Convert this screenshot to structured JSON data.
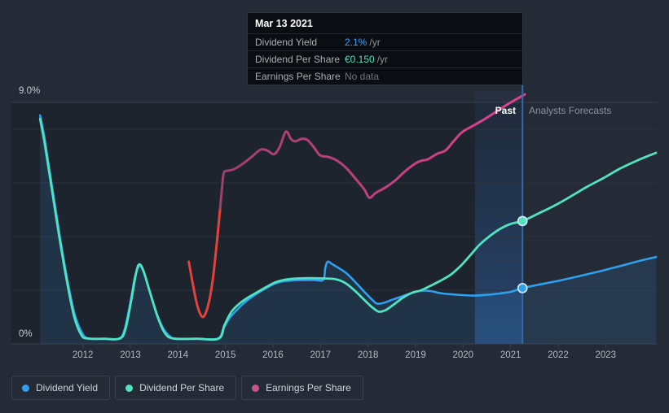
{
  "tooltip": {
    "title": "Mar 13 2021",
    "rows": [
      {
        "label": "Dividend Yield",
        "value": "2.1%",
        "suffix": "/yr",
        "value_color": "#36a2f5"
      },
      {
        "label": "Dividend Per Share",
        "value": "€0.150",
        "suffix": "/yr",
        "value_color": "#45e3c4"
      },
      {
        "label": "Earnings Per Share",
        "value": "No data",
        "suffix": "",
        "value_color": "#70767e"
      }
    ]
  },
  "axis": {
    "y_top_label": "9.0%",
    "y_bottom_label": "0%"
  },
  "annotations": {
    "past": "Past",
    "forecast": "Analysts Forecasts"
  },
  "legend": {
    "items": [
      {
        "label": "Dividend Yield",
        "color": "#2da0f0"
      },
      {
        "label": "Dividend Per Share",
        "color": "#4fe3c1"
      },
      {
        "label": "Earnings Per Share",
        "color": "#c9548e"
      }
    ]
  },
  "colors": {
    "page_bg": "#252b36",
    "past_plot_bg": "#1e242e",
    "gridline": "#2a313c",
    "gridline_strong": "#394150",
    "dividend_yield": "#2da0f0",
    "dividend_per_share": "#4fe3c1",
    "eps_pink_start": "#9d4070",
    "eps_pink_end": "#e2418f",
    "eps_red": "#e5423b",
    "area_fill": "rgba(47,128,208,0.16)",
    "now_line": "#2e6aae",
    "highlight_top": "rgba(44,100,170,0.08)",
    "highlight_bottom": "rgba(52,118,200,0.42)",
    "marker_ring": "#cfe3f2"
  },
  "chart_data": {
    "type": "line",
    "ylim": [
      0,
      9
    ],
    "y_gridlines_pct": [
      2,
      4,
      6,
      8
    ],
    "y_top_line_pct": 9,
    "x_tick_labels": [
      "2012",
      "2013",
      "2014",
      "2015",
      "2016",
      "2017",
      "2018",
      "2019",
      "2020",
      "2021",
      "2022",
      "2023"
    ],
    "x_tick_years": [
      2012,
      2013,
      2014,
      2015,
      2016,
      2017,
      2018,
      2019,
      2020,
      2021,
      2022,
      2023
    ],
    "past_forecast_divider_x": 2021.25,
    "highlight_x_range": [
      2020.25,
      2021.25
    ],
    "series": [
      {
        "name": "Dividend Yield",
        "past": [
          [
            2011.1,
            8.52
          ],
          [
            2011.2,
            7.61
          ],
          [
            2011.34,
            6.0
          ],
          [
            2011.49,
            4.3
          ],
          [
            2011.66,
            2.52
          ],
          [
            2011.83,
            1.09
          ],
          [
            2011.99,
            0.39
          ],
          [
            2012.13,
            0.2
          ],
          [
            2012.45,
            0.19
          ],
          [
            2012.76,
            0.2
          ],
          [
            2012.88,
            0.55
          ],
          [
            2013.0,
            1.55
          ],
          [
            2013.1,
            2.52
          ],
          [
            2013.19,
            2.91
          ],
          [
            2013.27,
            2.73
          ],
          [
            2013.39,
            2.06
          ],
          [
            2013.55,
            1.15
          ],
          [
            2013.7,
            0.55
          ],
          [
            2013.84,
            0.27
          ],
          [
            2013.95,
            0.2
          ],
          [
            2014.4,
            0.19
          ],
          [
            2014.84,
            0.2
          ],
          [
            2014.96,
            0.58
          ],
          [
            2015.09,
            0.97
          ],
          [
            2015.26,
            1.3
          ],
          [
            2015.43,
            1.58
          ],
          [
            2015.64,
            1.85
          ],
          [
            2015.84,
            2.06
          ],
          [
            2016.03,
            2.24
          ],
          [
            2016.21,
            2.33
          ],
          [
            2016.39,
            2.36
          ],
          [
            2016.63,
            2.38
          ],
          [
            2016.87,
            2.38
          ],
          [
            2017.06,
            2.39
          ],
          [
            2017.1,
            2.82
          ],
          [
            2017.15,
            3.06
          ],
          [
            2017.25,
            2.97
          ],
          [
            2017.39,
            2.82
          ],
          [
            2017.56,
            2.61
          ],
          [
            2017.75,
            2.27
          ],
          [
            2017.94,
            1.91
          ],
          [
            2018.09,
            1.64
          ],
          [
            2018.19,
            1.5
          ],
          [
            2018.33,
            1.53
          ],
          [
            2018.5,
            1.64
          ],
          [
            2018.71,
            1.77
          ],
          [
            2018.91,
            1.89
          ],
          [
            2019.1,
            1.98
          ],
          [
            2019.31,
            1.97
          ],
          [
            2019.53,
            1.89
          ],
          [
            2019.75,
            1.85
          ],
          [
            2019.99,
            1.82
          ],
          [
            2020.25,
            1.8
          ],
          [
            2020.51,
            1.83
          ],
          [
            2020.77,
            1.88
          ],
          [
            2021.02,
            1.95
          ],
          [
            2021.25,
            2.08
          ]
        ],
        "forecast": [
          [
            2021.25,
            2.08
          ],
          [
            2021.57,
            2.2
          ],
          [
            2021.92,
            2.32
          ],
          [
            2022.26,
            2.45
          ],
          [
            2022.6,
            2.59
          ],
          [
            2022.95,
            2.74
          ],
          [
            2023.32,
            2.91
          ],
          [
            2023.68,
            3.08
          ],
          [
            2024.06,
            3.24
          ]
        ],
        "marker": [
          2021.25,
          2.08
        ]
      },
      {
        "name": "Dividend Per Share",
        "past": [
          [
            2011.1,
            8.39
          ],
          [
            2011.2,
            7.45
          ],
          [
            2011.34,
            5.85
          ],
          [
            2011.49,
            4.15
          ],
          [
            2011.66,
            2.39
          ],
          [
            2011.82,
            1.0
          ],
          [
            2011.97,
            0.33
          ],
          [
            2012.1,
            0.2
          ],
          [
            2012.45,
            0.19
          ],
          [
            2012.78,
            0.2
          ],
          [
            2012.9,
            0.58
          ],
          [
            2013.02,
            1.64
          ],
          [
            2013.12,
            2.64
          ],
          [
            2013.19,
            2.97
          ],
          [
            2013.28,
            2.7
          ],
          [
            2013.4,
            2.0
          ],
          [
            2013.57,
            1.03
          ],
          [
            2013.72,
            0.42
          ],
          [
            2013.9,
            0.2
          ],
          [
            2014.4,
            0.19
          ],
          [
            2014.86,
            0.2
          ],
          [
            2014.98,
            0.7
          ],
          [
            2015.12,
            1.18
          ],
          [
            2015.28,
            1.48
          ],
          [
            2015.45,
            1.7
          ],
          [
            2015.65,
            1.91
          ],
          [
            2015.86,
            2.12
          ],
          [
            2016.06,
            2.3
          ],
          [
            2016.28,
            2.4
          ],
          [
            2016.52,
            2.44
          ],
          [
            2016.8,
            2.45
          ],
          [
            2017.07,
            2.44
          ],
          [
            2017.32,
            2.41
          ],
          [
            2017.52,
            2.27
          ],
          [
            2017.73,
            1.97
          ],
          [
            2017.92,
            1.64
          ],
          [
            2018.09,
            1.36
          ],
          [
            2018.23,
            1.2
          ],
          [
            2018.38,
            1.27
          ],
          [
            2018.55,
            1.48
          ],
          [
            2018.74,
            1.73
          ],
          [
            2018.93,
            1.91
          ],
          [
            2019.12,
            2.0
          ],
          [
            2019.33,
            2.18
          ],
          [
            2019.53,
            2.36
          ],
          [
            2019.74,
            2.58
          ],
          [
            2019.95,
            2.91
          ],
          [
            2020.15,
            3.3
          ],
          [
            2020.35,
            3.7
          ],
          [
            2020.57,
            4.03
          ],
          [
            2020.79,
            4.3
          ],
          [
            2021.0,
            4.47
          ],
          [
            2021.25,
            4.58
          ]
        ],
        "forecast": [
          [
            2021.25,
            4.58
          ],
          [
            2021.57,
            4.85
          ],
          [
            2021.92,
            5.15
          ],
          [
            2022.26,
            5.49
          ],
          [
            2022.6,
            5.85
          ],
          [
            2022.95,
            6.18
          ],
          [
            2023.32,
            6.55
          ],
          [
            2023.68,
            6.85
          ],
          [
            2024.06,
            7.12
          ]
        ],
        "marker": [
          2021.25,
          4.58
        ]
      },
      {
        "name": "Earnings Per Share",
        "red_segment": [
          [
            2014.23,
            3.06
          ],
          [
            2014.32,
            2.18
          ],
          [
            2014.41,
            1.42
          ],
          [
            2014.5,
            1.03
          ],
          [
            2014.57,
            1.09
          ],
          [
            2014.66,
            1.61
          ],
          [
            2014.74,
            2.48
          ],
          [
            2014.82,
            3.79
          ],
          [
            2014.89,
            5.06
          ]
        ],
        "main": [
          [
            2014.89,
            5.06
          ],
          [
            2014.93,
            5.85
          ],
          [
            2014.97,
            6.39
          ],
          [
            2015.07,
            6.46
          ],
          [
            2015.19,
            6.52
          ],
          [
            2015.4,
            6.76
          ],
          [
            2015.57,
            7.0
          ],
          [
            2015.74,
            7.24
          ],
          [
            2015.88,
            7.21
          ],
          [
            2016.02,
            7.07
          ],
          [
            2016.14,
            7.33
          ],
          [
            2016.27,
            7.91
          ],
          [
            2016.38,
            7.64
          ],
          [
            2016.47,
            7.55
          ],
          [
            2016.6,
            7.64
          ],
          [
            2016.72,
            7.61
          ],
          [
            2016.86,
            7.33
          ],
          [
            2016.99,
            7.03
          ],
          [
            2017.16,
            6.97
          ],
          [
            2017.33,
            6.85
          ],
          [
            2017.53,
            6.58
          ],
          [
            2017.74,
            6.15
          ],
          [
            2017.92,
            5.76
          ],
          [
            2018.03,
            5.45
          ],
          [
            2018.17,
            5.64
          ],
          [
            2018.36,
            5.82
          ],
          [
            2018.57,
            6.09
          ],
          [
            2018.77,
            6.42
          ],
          [
            2019.0,
            6.73
          ],
          [
            2019.13,
            6.83
          ],
          [
            2019.26,
            6.88
          ],
          [
            2019.46,
            7.09
          ],
          [
            2019.63,
            7.21
          ],
          [
            2019.8,
            7.55
          ],
          [
            2019.97,
            7.88
          ],
          [
            2020.2,
            8.12
          ],
          [
            2020.41,
            8.33
          ],
          [
            2020.63,
            8.58
          ],
          [
            2020.89,
            8.88
          ],
          [
            2021.09,
            9.09
          ],
          [
            2021.3,
            9.3
          ]
        ]
      }
    ]
  }
}
